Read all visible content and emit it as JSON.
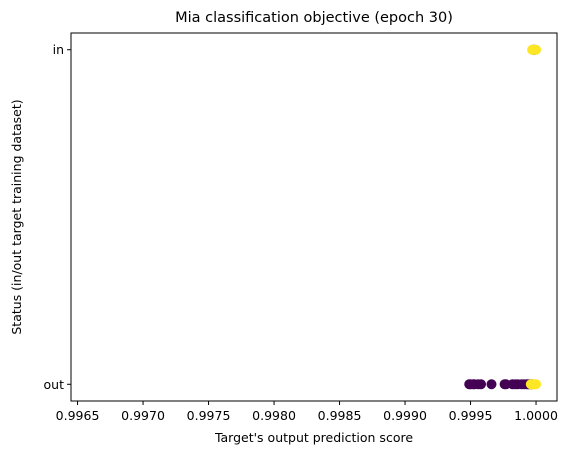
{
  "chart_data": {
    "type": "scatter",
    "title": "Mia classification objective (epoch 30)",
    "xlabel": "Target's output prediction score",
    "ylabel": "Status (in/out target training dataset)",
    "xlim": [
      0.99645,
      1.00016
    ],
    "ylim": [
      -0.05,
      1.05
    ],
    "x_ticks": [
      {
        "value": 0.9965,
        "label": "0.9965"
      },
      {
        "value": 0.997,
        "label": "0.9970"
      },
      {
        "value": 0.9975,
        "label": "0.9975"
      },
      {
        "value": 0.998,
        "label": "0.9980"
      },
      {
        "value": 0.9985,
        "label": "0.9985"
      },
      {
        "value": 0.999,
        "label": "0.9990"
      },
      {
        "value": 0.9995,
        "label": "0.9995"
      },
      {
        "value": 1.0,
        "label": "1.0000"
      }
    ],
    "y_ticks": [
      {
        "value": 0,
        "label": "out"
      },
      {
        "value": 1,
        "label": "in"
      }
    ],
    "grid": false,
    "legend": "none",
    "colors": {
      "purple": "#440154",
      "yellow": "#fde725"
    },
    "series": [
      {
        "color": "#440154",
        "points": [
          {
            "x": 0.99966,
            "y": 0
          },
          {
            "x": 0.99949,
            "y": 0
          },
          {
            "x": 0.9995,
            "y": 0
          },
          {
            "x": 0.99952,
            "y": 0
          },
          {
            "x": 0.99953,
            "y": 0
          },
          {
            "x": 0.99956,
            "y": 0
          },
          {
            "x": 0.99958,
            "y": 0
          },
          {
            "x": 0.99976,
            "y": 0
          },
          {
            "x": 0.99977,
            "y": 0
          },
          {
            "x": 0.99982,
            "y": 0
          },
          {
            "x": 0.99984,
            "y": 0
          },
          {
            "x": 0.99986,
            "y": 0
          },
          {
            "x": 0.99989,
            "y": 0
          },
          {
            "x": 0.99991,
            "y": 0
          },
          {
            "x": 0.99993,
            "y": 0
          },
          {
            "x": 0.99994,
            "y": 0
          },
          {
            "x": 0.99995,
            "y": 0
          },
          {
            "x": 0.99996,
            "y": 0
          },
          {
            "x": 0.99997,
            "y": 0
          },
          {
            "x": 0.99998,
            "y": 1
          },
          {
            "x": 0.99999,
            "y": 1
          }
        ]
      },
      {
        "color": "#fde725",
        "points": [
          {
            "x": 0.99996,
            "y": 0
          },
          {
            "x": 0.99997,
            "y": 0
          },
          {
            "x": 0.99998,
            "y": 0
          },
          {
            "x": 0.99999,
            "y": 0
          },
          {
            "x": 1.0,
            "y": 0
          },
          {
            "x": 0.99997,
            "y": 1
          },
          {
            "x": 0.99998,
            "y": 1
          },
          {
            "x": 0.99999,
            "y": 1
          },
          {
            "x": 1.0,
            "y": 1
          }
        ]
      }
    ]
  }
}
